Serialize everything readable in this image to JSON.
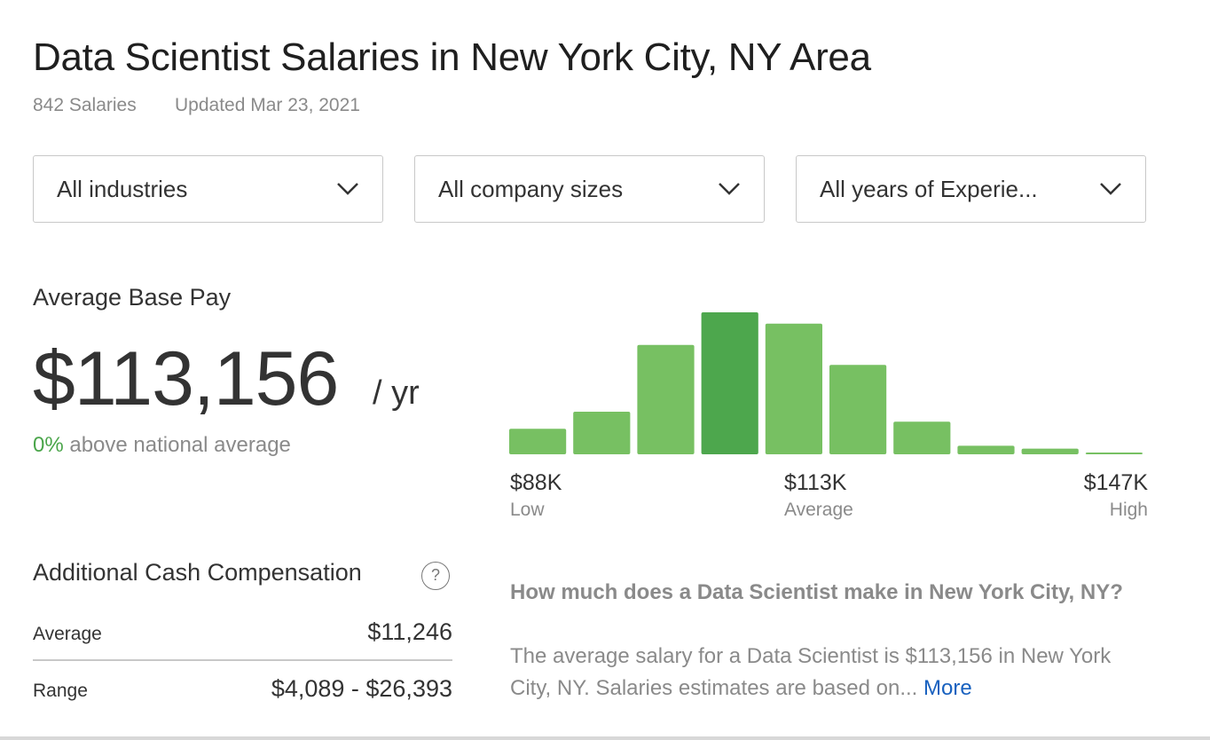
{
  "header": {
    "title": "Data Scientist Salaries in New York City, NY Area",
    "salaries_count": "842 Salaries",
    "updated": "Updated Mar 23, 2021"
  },
  "filters": [
    {
      "label": "All industries",
      "icon": "chevron-down-icon"
    },
    {
      "label": "All company sizes",
      "icon": "chevron-down-icon"
    },
    {
      "label": "All years of Experie...",
      "icon": "chevron-down-icon"
    }
  ],
  "base_pay": {
    "label": "Average Base Pay",
    "amount": "$113,156",
    "unit": "/ yr",
    "pct": "0%",
    "comparison": "above national average"
  },
  "colors": {
    "bar": "#77c062",
    "bar_highlight": "#4da74d",
    "accent_green": "#4aa54a",
    "link": "#1861bf"
  },
  "chart_data": {
    "type": "bar",
    "description_of_values": "relative bar heights, percent of tallest",
    "values": [
      18,
      30,
      77,
      100,
      92,
      63,
      23,
      6,
      4,
      1
    ],
    "highlight_index": 3,
    "axis_labels": [
      {
        "value": "$88K",
        "caption": "Low"
      },
      {
        "value": "$113K",
        "caption": "Average"
      },
      {
        "value": "$147K",
        "caption": "High"
      }
    ],
    "grid": false
  },
  "additional": {
    "title": "Additional Cash Compensation",
    "help_icon": "question-circle-icon",
    "help_glyph": "?",
    "rows": [
      {
        "label": "Average",
        "value": "$11,246"
      },
      {
        "label": "Range",
        "value": "$4,089 - $26,393"
      }
    ]
  },
  "faq": {
    "question": "How much does a Data Scientist make in New York City, NY?",
    "answer": "The average salary for a Data Scientist is $113,156 in New York City, NY. Salaries estimates are based on...",
    "more": "More"
  }
}
